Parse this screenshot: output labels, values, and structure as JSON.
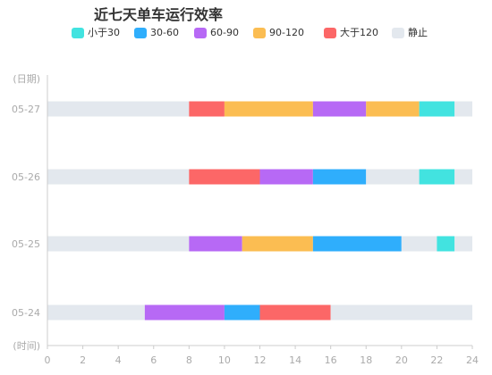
{
  "chart_data": {
    "type": "bar",
    "orientation": "horizontal-timeline",
    "title": "近七天单车运行效率",
    "ylabel": "(日期)",
    "xlabel": "(时间)",
    "categories": [
      "05-24",
      "05-25",
      "05-26",
      "05-27"
    ],
    "xlim": [
      0,
      24
    ],
    "x_ticks": [
      0,
      2,
      4,
      6,
      8,
      10,
      12,
      14,
      16,
      18,
      20,
      22,
      24
    ],
    "grid": false,
    "legend_position": "top",
    "legend": [
      {
        "key": "lt30",
        "label": "小于30",
        "color": "#42e3e0"
      },
      {
        "key": "30_60",
        "label": "30-60",
        "color": "#2faefc"
      },
      {
        "key": "60_90",
        "label": "60-90",
        "color": "#b769f5"
      },
      {
        "key": "90_120",
        "label": "90-120",
        "color": "#fbbd52"
      },
      {
        "key": "gt120",
        "label": "大于120",
        "color": "#fc6767"
      },
      {
        "key": "stop",
        "label": "静止",
        "color": "#e3e8ee"
      }
    ],
    "series": [
      {
        "date": "05-24",
        "segments": [
          {
            "start": 0,
            "end": 5.5,
            "key": "stop"
          },
          {
            "start": 5.5,
            "end": 10,
            "key": "60_90"
          },
          {
            "start": 10,
            "end": 12,
            "key": "30_60"
          },
          {
            "start": 12,
            "end": 16,
            "key": "gt120"
          },
          {
            "start": 16,
            "end": 24,
            "key": "stop"
          }
        ]
      },
      {
        "date": "05-25",
        "segments": [
          {
            "start": 0,
            "end": 8,
            "key": "stop"
          },
          {
            "start": 8,
            "end": 11,
            "key": "60_90"
          },
          {
            "start": 11,
            "end": 15,
            "key": "90_120"
          },
          {
            "start": 15,
            "end": 20,
            "key": "30_60"
          },
          {
            "start": 20,
            "end": 22,
            "key": "stop"
          },
          {
            "start": 22,
            "end": 23,
            "key": "lt30"
          },
          {
            "start": 23,
            "end": 24,
            "key": "stop"
          }
        ]
      },
      {
        "date": "05-26",
        "segments": [
          {
            "start": 0,
            "end": 8,
            "key": "stop"
          },
          {
            "start": 8,
            "end": 12,
            "key": "gt120"
          },
          {
            "start": 12,
            "end": 15,
            "key": "60_90"
          },
          {
            "start": 15,
            "end": 18,
            "key": "30_60"
          },
          {
            "start": 18,
            "end": 21,
            "key": "stop"
          },
          {
            "start": 21,
            "end": 23,
            "key": "lt30"
          },
          {
            "start": 23,
            "end": 24,
            "key": "stop"
          }
        ]
      },
      {
        "date": "05-27",
        "segments": [
          {
            "start": 0,
            "end": 8,
            "key": "stop"
          },
          {
            "start": 8,
            "end": 10,
            "key": "gt120"
          },
          {
            "start": 10,
            "end": 15,
            "key": "90_120"
          },
          {
            "start": 15,
            "end": 18,
            "key": "60_90"
          },
          {
            "start": 18,
            "end": 21,
            "key": "90_120"
          },
          {
            "start": 21,
            "end": 23,
            "key": "lt30"
          },
          {
            "start": 23,
            "end": 24,
            "key": "stop"
          }
        ]
      }
    ]
  }
}
